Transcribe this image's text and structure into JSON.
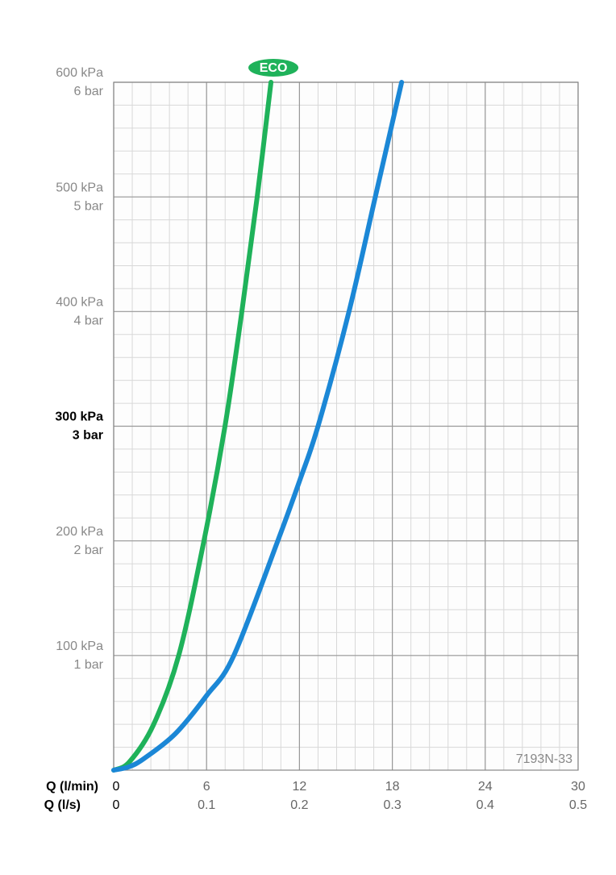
{
  "chart_data": {
    "type": "line",
    "xlabel": "Q (l/min)",
    "x2label": "Q (l/s)",
    "xlim": [
      0,
      30
    ],
    "xticks": [
      0,
      6,
      12,
      18,
      24,
      30
    ],
    "x2lim": [
      0,
      0.5
    ],
    "x2ticks": [
      0,
      0.1,
      0.2,
      0.3,
      0.4,
      0.5
    ],
    "ylim": [
      0,
      600
    ],
    "yticks": [
      {
        "value": 100,
        "label": "100 kPa"
      },
      {
        "value": 200,
        "label": "200 kPa"
      },
      {
        "value": 300,
        "label": "300 kPa"
      },
      {
        "value": 400,
        "label": "400 kPa"
      },
      {
        "value": 500,
        "label": "500 kPa"
      },
      {
        "value": 600,
        "label": "600 kPa"
      }
    ],
    "y2lim": [
      0,
      6
    ],
    "y2ticks": [
      {
        "value": 1,
        "label": "1 bar"
      },
      {
        "value": 2,
        "label": "2 bar"
      },
      {
        "value": 3,
        "label": "3 bar"
      },
      {
        "value": 4,
        "label": "4 bar"
      },
      {
        "value": 5,
        "label": "5 bar"
      },
      {
        "value": 6,
        "label": "6 bar"
      }
    ],
    "emphasized_ytick": 300,
    "grid": true,
    "minor_grid": {
      "x": 1.2,
      "y": 20
    },
    "annotation": "7193N-33",
    "series": [
      {
        "name": "ECO",
        "color": "#1fb25a",
        "x": [
          0,
          1,
          2.55,
          4.2,
          5.83,
          7.19,
          8.28,
          9.27,
          10.16
        ],
        "values": [
          0,
          7,
          39,
          100,
          200,
          300,
          400,
          500,
          600
        ]
      },
      {
        "color": "#1b87d6",
        "x": [
          0,
          1,
          2,
          4,
          6,
          7.76,
          10.6,
          12,
          13.2,
          15.2,
          16.9,
          18.6
        ],
        "values": [
          0,
          3,
          10.5,
          32,
          65,
          100,
          200,
          252,
          300,
          400,
          500,
          600
        ]
      }
    ]
  }
}
